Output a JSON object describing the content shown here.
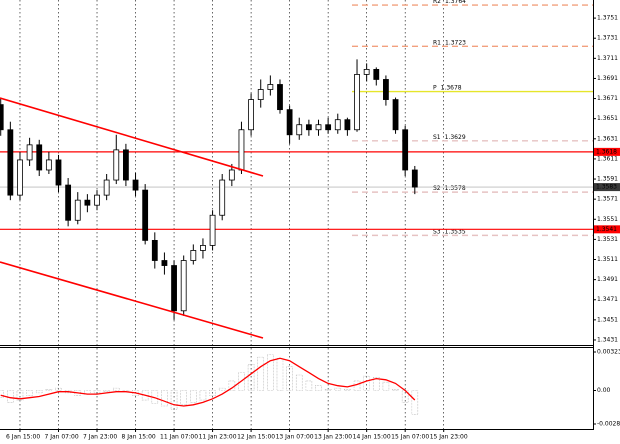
{
  "chart_data": {
    "type": "candlestick",
    "categories": [
      null,
      null,
      "6 Jan 15:00",
      null,
      null,
      null,
      "7 Jan 07:00",
      null,
      null,
      null,
      "7 Jan 23:00",
      null,
      null,
      null,
      "8 Jan 15:00",
      null,
      null,
      null,
      "11 Jan 07:00",
      null,
      null,
      null,
      "11 Jan 23:00",
      null,
      null,
      null,
      "12 Jan 15:00",
      null,
      null,
      null,
      "13 Jan 07:00",
      null,
      null,
      null,
      "13 Jan 23:00",
      null,
      null,
      null,
      "14 Jan 15:00",
      null,
      null,
      null,
      "15 Jan 07:00",
      null,
      null,
      null,
      "15 Jan 23:00"
    ],
    "open": [
      1.3665,
      1.364,
      1.3575,
      1.361,
      1.3625,
      1.36,
      1.361,
      1.3585,
      1.355,
      1.357,
      1.3565,
      1.3575,
      1.359,
      1.362,
      1.359,
      1.358,
      1.353,
      1.351,
      1.3505,
      1.346,
      1.351,
      1.352,
      1.3525,
      1.3555,
      1.359,
      1.36,
      1.364,
      1.367,
      1.368,
      1.3685,
      1.366,
      1.3635,
      1.3645,
      1.364,
      1.3645,
      1.364,
      1.365,
      1.364,
      1.3695,
      1.37,
      1.369,
      1.367,
      1.364,
      1.36,
      null,
      null,
      null
    ],
    "high": [
      1.3672,
      1.3648,
      1.3618,
      1.3632,
      1.363,
      1.3618,
      1.3615,
      1.3592,
      1.3578,
      1.3576,
      1.358,
      1.3596,
      1.3635,
      1.3626,
      1.3597,
      1.3586,
      1.3538,
      1.3518,
      1.351,
      1.3515,
      1.3526,
      1.3532,
      1.356,
      1.3596,
      1.3606,
      1.3648,
      1.3676,
      1.369,
      1.3694,
      1.369,
      1.3664,
      1.3652,
      1.365,
      1.365,
      1.3652,
      1.3656,
      1.3652,
      1.371,
      1.3706,
      1.3702,
      1.3694,
      1.3672,
      1.3644,
      1.3604,
      null,
      null,
      null
    ],
    "low": [
      1.3634,
      1.357,
      1.357,
      1.3604,
      1.3594,
      1.3596,
      1.3578,
      1.3544,
      1.3546,
      1.3558,
      1.356,
      1.357,
      1.3586,
      1.3584,
      1.3574,
      1.3526,
      1.3502,
      1.3496,
      1.3451,
      1.3455,
      1.3506,
      1.3512,
      1.352,
      1.355,
      1.3584,
      1.3596,
      1.3634,
      1.3662,
      1.3674,
      1.3656,
      1.3626,
      1.363,
      1.3634,
      1.3634,
      1.3636,
      1.3636,
      1.3634,
      1.3638,
      1.3688,
      1.3684,
      1.3664,
      1.3636,
      1.3594,
      1.3576,
      null,
      null,
      null
    ],
    "close": [
      1.364,
      1.3575,
      1.361,
      1.3625,
      1.36,
      1.361,
      1.3585,
      1.355,
      1.357,
      1.3565,
      1.3575,
      1.359,
      1.362,
      1.359,
      1.358,
      1.353,
      1.351,
      1.3505,
      1.346,
      1.351,
      1.352,
      1.3525,
      1.3555,
      1.359,
      1.36,
      1.364,
      1.367,
      1.368,
      1.3685,
      1.366,
      1.3635,
      1.3645,
      1.364,
      1.3645,
      1.364,
      1.365,
      1.364,
      1.3695,
      1.37,
      1.369,
      1.367,
      1.364,
      1.36,
      1.3583,
      null,
      null,
      null
    ],
    "color_up": "#ffffff",
    "color_down": "#000000",
    "ylim": [
      1.3426,
      1.3769
    ],
    "yticks": [
      1.3751,
      1.3731,
      1.3711,
      1.3691,
      1.3671,
      1.3651,
      1.3631,
      1.3611,
      1.3591,
      1.3571,
      1.3551,
      1.3531,
      1.3511,
      1.3491,
      1.3471,
      1.3451,
      1.3431
    ],
    "grid": true,
    "levels": [
      {
        "name": "R2",
        "value": 1.3764,
        "color": "#f2a07e",
        "style": "dashed"
      },
      {
        "name": "R1",
        "value": 1.3723,
        "color": "#f2a07e",
        "style": "dashed"
      },
      {
        "name": "P",
        "value": 1.3678,
        "color": "#e6e62a",
        "style": "solid"
      },
      {
        "name": "S1",
        "value": 1.3629,
        "color": "#e6c2c2",
        "style": "dashed"
      },
      {
        "name": "S2",
        "value": 1.3578,
        "color": "#e6c2c2",
        "style": "dashed"
      },
      {
        "name": "S3",
        "value": 1.3535,
        "color": "#e6c2c2",
        "style": "dashed"
      }
    ],
    "price_lines": [
      {
        "value": 1.3618,
        "color": "#ff0000"
      },
      {
        "value": 1.3541,
        "color": "#ff0000"
      }
    ],
    "last_price": {
      "value": 1.3583,
      "color": "#3a3a3a"
    },
    "indicator": {
      "histogram": [
        -0.0006,
        -0.001,
        -0.0008,
        -0.0004,
        -0.0002,
        0.0001,
        0.0002,
        -0.0002,
        -0.0004,
        -0.0003,
        -0.0002,
        -0.0001,
        0.0002,
        -0.0001,
        -0.0004,
        -0.0008,
        -0.0011,
        -0.0013,
        -0.0016,
        -0.0012,
        -0.001,
        -0.0008,
        -0.0004,
        0.0002,
        0.0008,
        0.0015,
        0.0022,
        0.0028,
        0.003,
        0.0027,
        0.002,
        0.0013,
        0.0008,
        0.0004,
        0.0001,
        0.0002,
        0.0001,
        0.0008,
        0.0012,
        0.0011,
        0.0007,
        0.0001,
        -0.001,
        -0.002,
        null,
        null,
        null
      ],
      "signal": [
        -0.0004,
        -0.0006,
        -0.0007,
        -0.0006,
        -0.0005,
        -0.0003,
        -0.0001,
        -0.0001,
        -0.0002,
        -0.0003,
        -0.0003,
        -0.0002,
        -0.0001,
        -0.0001,
        -0.0002,
        -0.0004,
        -0.0006,
        -0.0009,
        -0.0012,
        -0.0013,
        -0.0012,
        -0.001,
        -0.0007,
        -0.0003,
        0.0002,
        0.0008,
        0.0014,
        0.002,
        0.0025,
        0.0027,
        0.0025,
        0.002,
        0.0015,
        0.001,
        0.0006,
        0.0004,
        0.0003,
        0.0005,
        0.0008,
        0.001,
        0.0009,
        0.0006,
        0.0,
        -0.0008,
        null,
        null,
        null
      ],
      "histogram_color": "#9a9a9a",
      "signal_color": "#ff0000",
      "ylim": [
        -0.00281,
        0.00323
      ],
      "yticks": [
        0.00323,
        {
          "value": 0,
          "label": "0.00"
        },
        -0.00281
      ]
    }
  }
}
